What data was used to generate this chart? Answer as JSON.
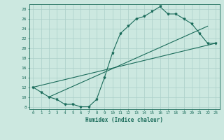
{
  "xlabel": "Humidex (Indice chaleur)",
  "bg_color": "#cce8e0",
  "grid_color": "#aacfc8",
  "line_color": "#1a6b5a",
  "xlim": [
    -0.5,
    23.5
  ],
  "ylim": [
    7.5,
    29
  ],
  "xticks": [
    0,
    1,
    2,
    3,
    4,
    5,
    6,
    7,
    8,
    9,
    10,
    11,
    12,
    13,
    14,
    15,
    16,
    17,
    18,
    19,
    20,
    21,
    22,
    23
  ],
  "yticks": [
    8,
    10,
    12,
    14,
    16,
    18,
    20,
    22,
    24,
    26,
    28
  ],
  "line1_x": [
    0,
    1,
    2,
    3,
    4,
    5,
    6,
    7,
    8,
    9,
    10,
    11,
    12,
    13,
    14,
    15,
    16,
    17,
    18,
    19,
    20,
    21,
    22,
    23
  ],
  "line1_y": [
    12,
    11,
    10,
    9.5,
    8.5,
    8.5,
    8,
    8,
    9.5,
    14,
    19,
    23,
    24.5,
    26,
    26.5,
    27.5,
    28.5,
    27,
    27,
    26,
    25,
    23,
    21,
    21
  ],
  "line2_x": [
    0,
    23
  ],
  "line2_y": [
    12,
    21
  ],
  "line3_x": [
    2,
    22
  ],
  "line3_y": [
    10,
    24.5
  ],
  "lw": 0.8,
  "ms": 2.0,
  "xlabel_fontsize": 5.5,
  "tick_fontsize": 4.2
}
